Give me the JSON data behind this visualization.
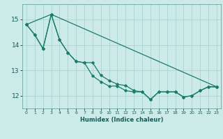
{
  "title": "",
  "xlabel": "Humidex (Indice chaleur)",
  "bg_color": "#cceae8",
  "grid_color": "#aad4d2",
  "line_color": "#1a7a6e",
  "xlim": [
    -0.5,
    23.5
  ],
  "ylim": [
    11.5,
    15.6
  ],
  "yticks": [
    12,
    13,
    14,
    15
  ],
  "xticks": [
    0,
    1,
    2,
    3,
    4,
    5,
    6,
    7,
    8,
    9,
    10,
    11,
    12,
    13,
    14,
    15,
    16,
    17,
    18,
    19,
    20,
    21,
    22,
    23
  ],
  "series1_x": [
    0,
    1,
    2,
    3,
    4,
    5,
    6,
    7,
    8,
    9,
    10,
    11,
    12,
    13,
    14,
    15,
    16,
    17,
    18,
    19,
    20,
    21,
    22,
    23
  ],
  "series1_y": [
    14.8,
    14.4,
    13.85,
    15.2,
    14.2,
    13.7,
    13.35,
    13.3,
    13.3,
    12.8,
    12.6,
    12.45,
    12.4,
    12.2,
    12.15,
    11.85,
    12.15,
    12.15,
    12.15,
    11.95,
    12.0,
    12.2,
    12.35,
    12.35
  ],
  "series2_x": [
    0,
    1,
    2,
    3,
    4,
    5,
    6,
    7,
    8,
    9,
    10,
    11,
    12,
    13,
    14,
    15,
    16,
    17,
    18,
    19,
    20,
    21,
    22,
    23
  ],
  "series2_y": [
    14.8,
    14.4,
    13.85,
    15.2,
    14.2,
    13.7,
    13.35,
    13.3,
    12.78,
    12.55,
    12.38,
    12.38,
    12.2,
    12.15,
    12.15,
    11.85,
    12.15,
    12.15,
    12.15,
    11.95,
    12.0,
    12.2,
    12.35,
    12.35
  ],
  "series3_x": [
    0,
    3,
    23
  ],
  "series3_y": [
    14.8,
    15.2,
    12.35
  ]
}
